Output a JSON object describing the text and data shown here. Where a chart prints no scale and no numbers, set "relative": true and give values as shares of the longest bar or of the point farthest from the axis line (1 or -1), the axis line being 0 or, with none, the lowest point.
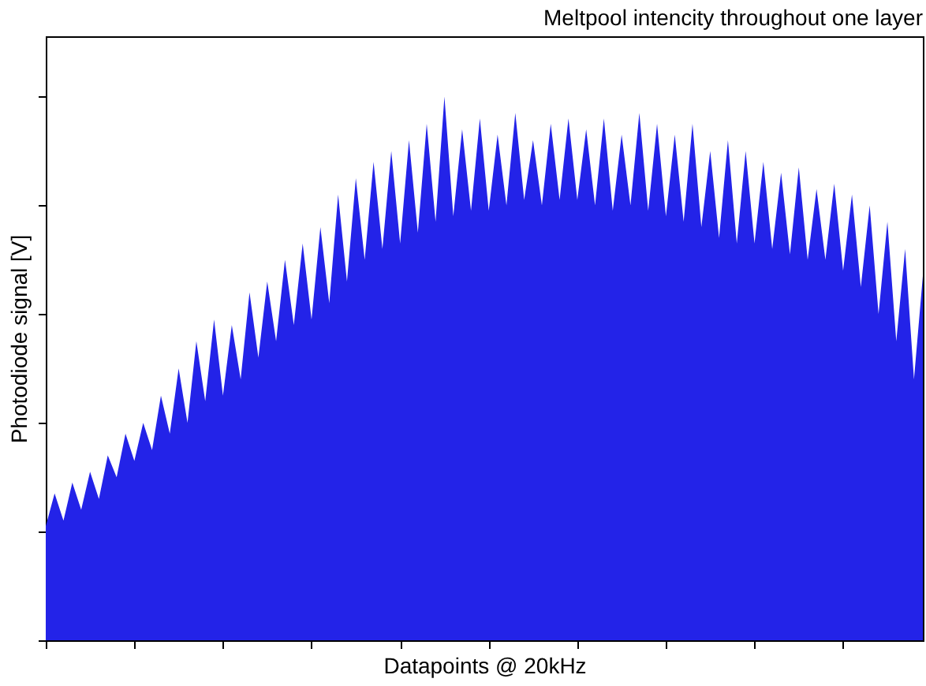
{
  "chart_data": {
    "type": "area",
    "title": "Meltpool intencity throughout one layer",
    "xlabel": "Datapoints @ 20kHz",
    "ylabel": "Photodiode signal [V]",
    "relative": true,
    "tick_labels": false,
    "grid": false,
    "categories": [
      null,
      null,
      null,
      null,
      null,
      null,
      null,
      null,
      null,
      null,
      null,
      null,
      null,
      null,
      null,
      null,
      null,
      null,
      null,
      null,
      null,
      null,
      null,
      null,
      null,
      null,
      null,
      null,
      null,
      null,
      null,
      null,
      null,
      null,
      null,
      null,
      null,
      null,
      null,
      null,
      null,
      null,
      null,
      null,
      null,
      null,
      null,
      null,
      null,
      null,
      null,
      null,
      null,
      null,
      null,
      null,
      null,
      null,
      null,
      null,
      null,
      null,
      null,
      null,
      null,
      null,
      null,
      null,
      null,
      null,
      null,
      null,
      null,
      null,
      null,
      null,
      null,
      null,
      null,
      null,
      null,
      null,
      null,
      null,
      null,
      null,
      null,
      null,
      null,
      null,
      null,
      null,
      null,
      null,
      null,
      null,
      null,
      null,
      null,
      null
    ],
    "series": [
      {
        "color": "#2323e8",
        "values": [
          0.21,
          0.27,
          0.22,
          0.29,
          0.24,
          0.31,
          0.26,
          0.34,
          0.3,
          0.38,
          0.33,
          0.4,
          0.35,
          0.45,
          0.38,
          0.5,
          0.4,
          0.55,
          0.44,
          0.59,
          0.45,
          0.58,
          0.48,
          0.64,
          0.52,
          0.66,
          0.55,
          0.7,
          0.58,
          0.73,
          0.59,
          0.76,
          0.62,
          0.82,
          0.66,
          0.85,
          0.7,
          0.88,
          0.72,
          0.9,
          0.73,
          0.92,
          0.75,
          0.95,
          0.77,
          1.0,
          0.78,
          0.94,
          0.79,
          0.96,
          0.79,
          0.93,
          0.8,
          0.97,
          0.81,
          0.92,
          0.8,
          0.95,
          0.81,
          0.96,
          0.81,
          0.94,
          0.8,
          0.96,
          0.79,
          0.93,
          0.8,
          0.97,
          0.79,
          0.95,
          0.78,
          0.93,
          0.77,
          0.95,
          0.76,
          0.9,
          0.74,
          0.92,
          0.73,
          0.9,
          0.73,
          0.88,
          0.72,
          0.86,
          0.71,
          0.87,
          0.7,
          0.83,
          0.7,
          0.84,
          0.68,
          0.82,
          0.65,
          0.8,
          0.6,
          0.77,
          0.55,
          0.72,
          0.48,
          0.67
        ]
      }
    ]
  }
}
